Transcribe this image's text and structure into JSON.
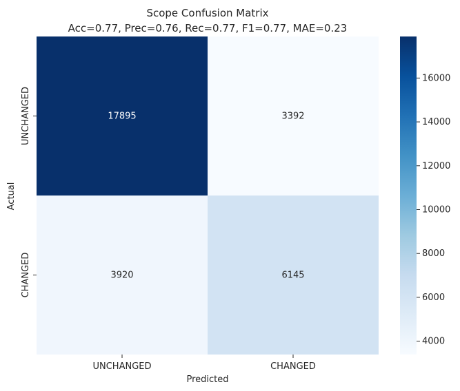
{
  "chart_data": {
    "type": "heatmap",
    "title": "Scope Confusion Matrix",
    "subtitle": "Acc=0.77, Prec=0.76, Rec=0.77, F1=0.77, MAE=0.23",
    "xlabel": "Predicted",
    "ylabel": "Actual",
    "x_categories": [
      "UNCHANGED",
      "CHANGED"
    ],
    "y_categories": [
      "UNCHANGED",
      "CHANGED"
    ],
    "values": [
      [
        17895,
        3392
      ],
      [
        3920,
        6145
      ]
    ],
    "colormap": "Blues",
    "colorbar": {
      "range": [
        3392,
        17895
      ],
      "ticks": [
        4000,
        6000,
        8000,
        10000,
        12000,
        14000,
        16000
      ]
    }
  }
}
